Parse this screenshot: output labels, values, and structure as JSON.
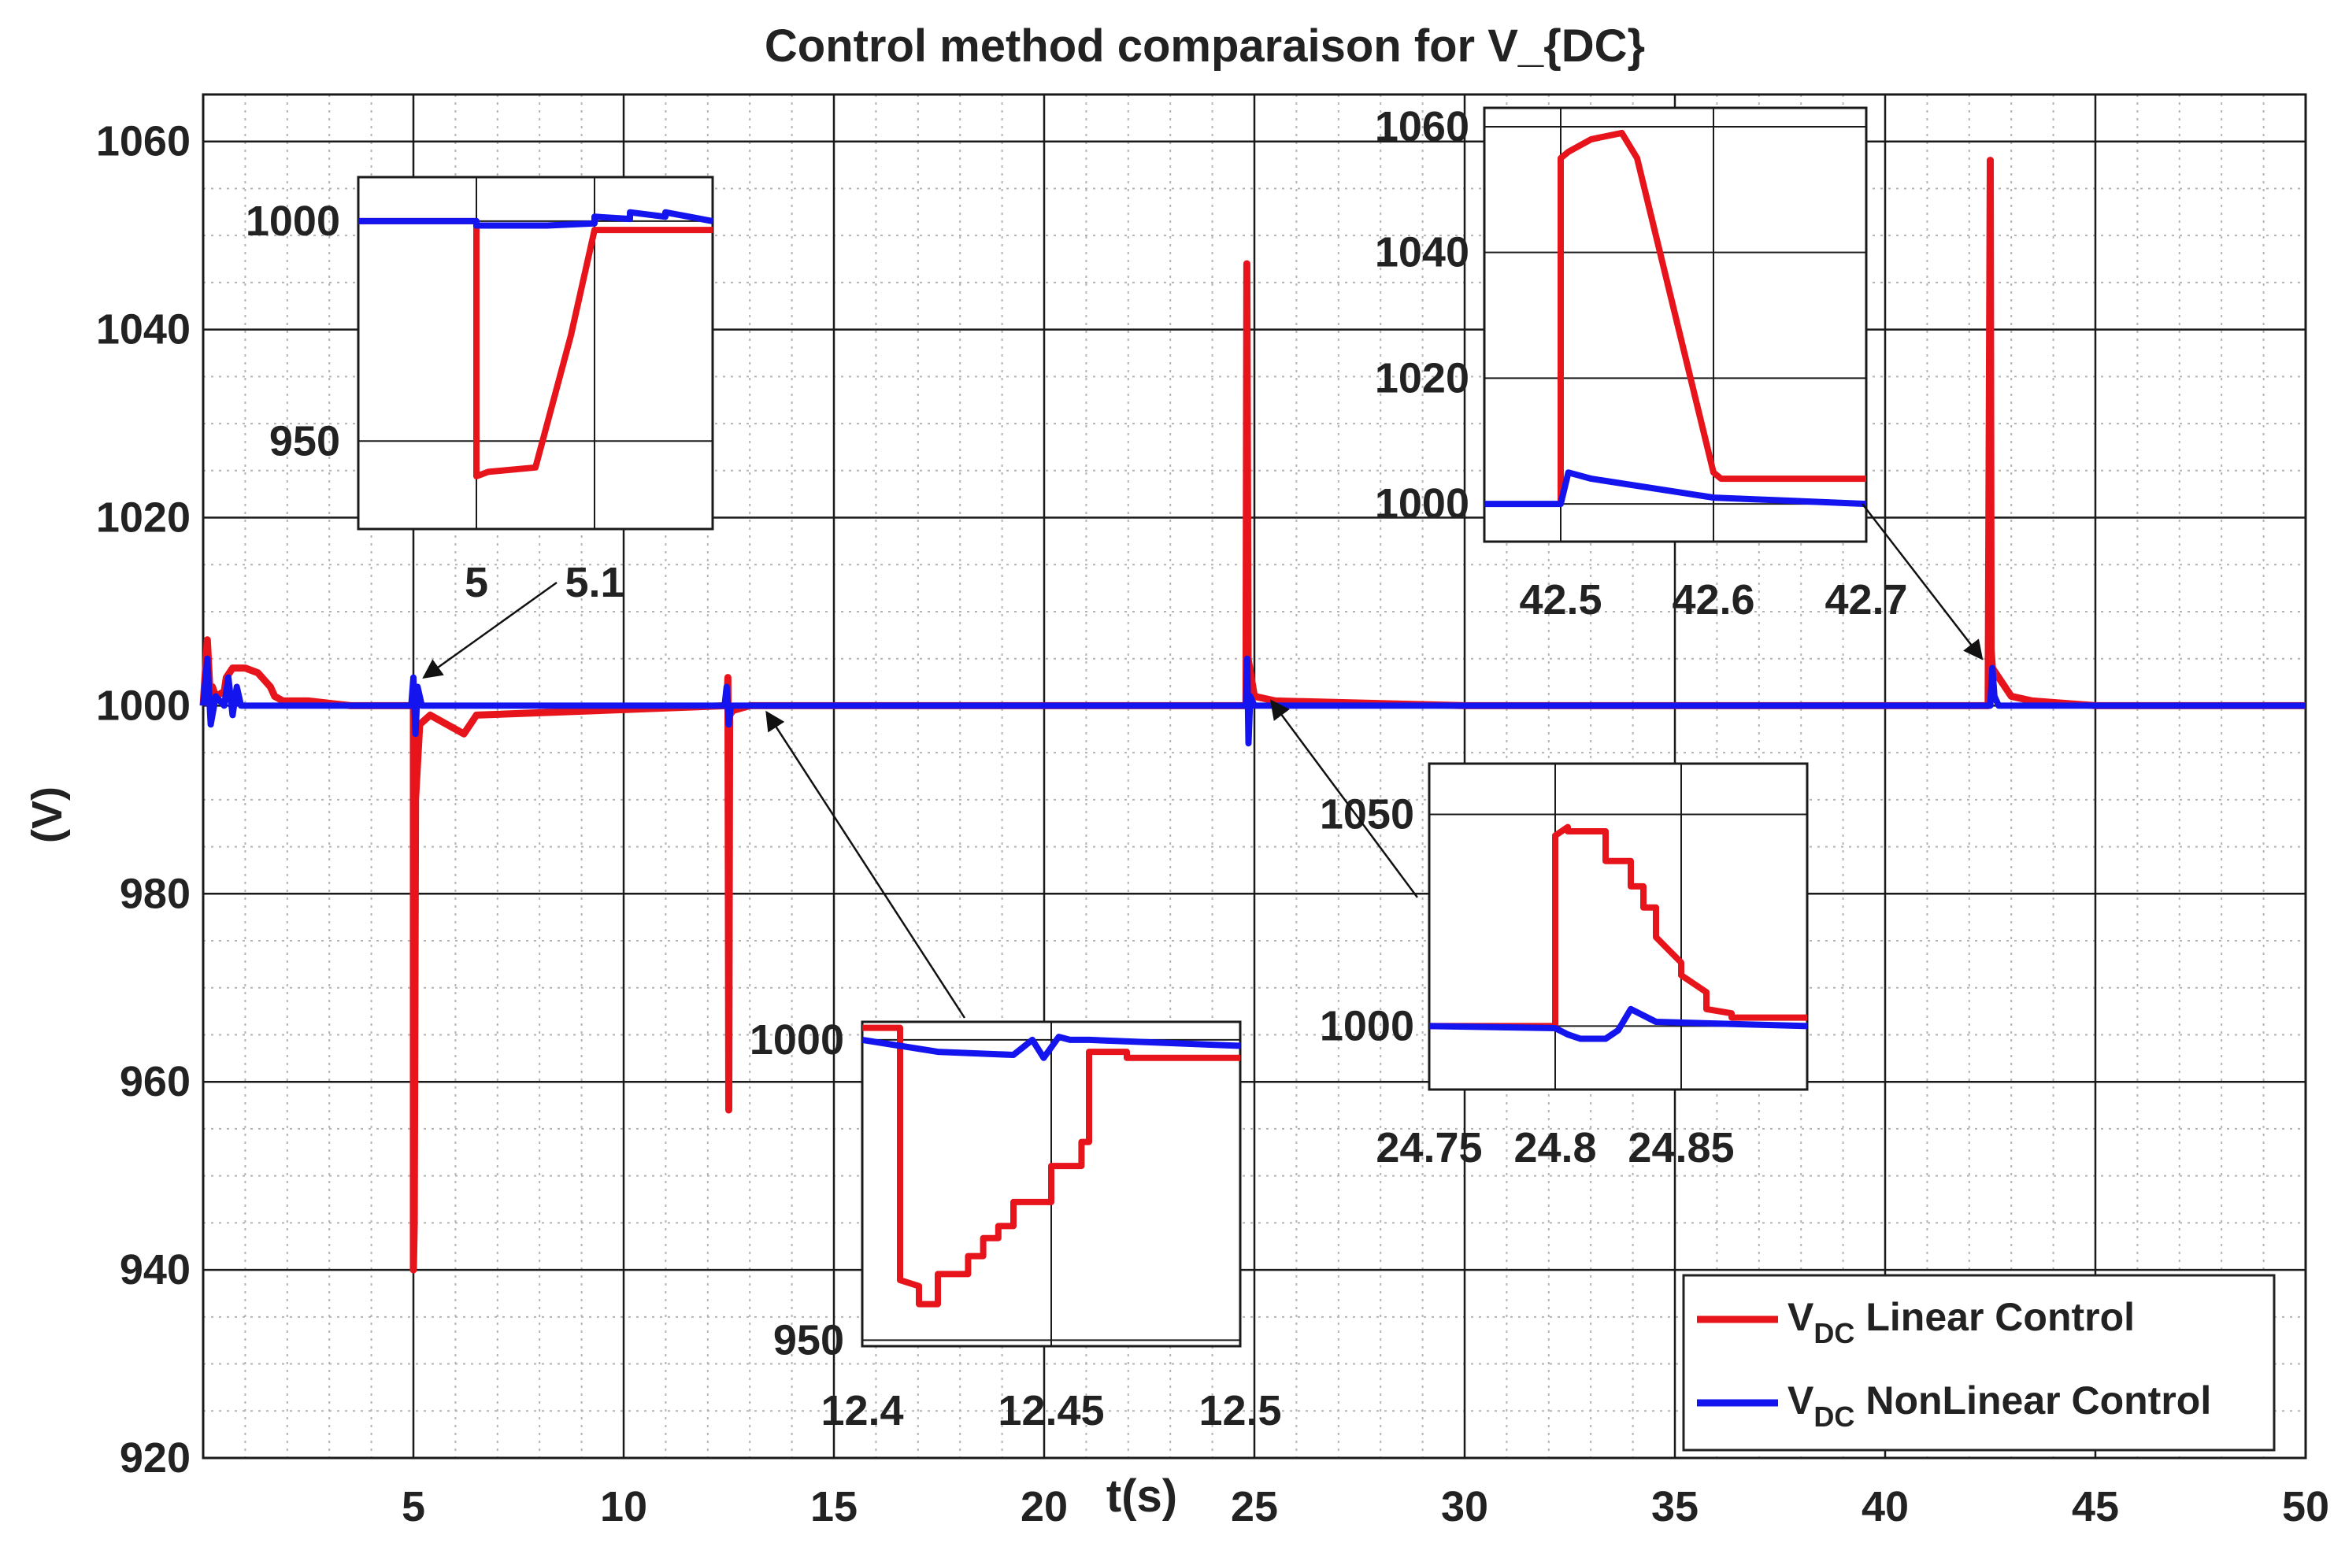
{
  "chart_data": [
    {
      "type": "line",
      "role": "main",
      "title": "Control method comparaison for V_{DC}",
      "xlabel": "t(s)",
      "ylabel": "(V)",
      "xlim": [
        0,
        50
      ],
      "ylim": [
        920,
        1065
      ],
      "xticks": [
        5,
        10,
        15,
        20,
        25,
        30,
        35,
        40,
        45,
        50
      ],
      "yticks": [
        920,
        940,
        960,
        980,
        1000,
        1020,
        1040,
        1060
      ],
      "grid": true,
      "legend_position": "bottom-right",
      "legend": [
        {
          "symbol": "V",
          "subscript": "DC",
          "label": "Linear Control",
          "color": "#e8141c"
        },
        {
          "symbol": "V",
          "subscript": "DC",
          "label": "NonLinear Control",
          "color": "#1414ee"
        }
      ],
      "series": [
        {
          "name": "V_DC Linear Control",
          "color": "#e8141c",
          "x": [
            0,
            0.1,
            0.18,
            0.22,
            0.3,
            0.5,
            0.55,
            0.7,
            1.0,
            1.3,
            1.6,
            1.7,
            1.9,
            2.5,
            3.5,
            5.0,
            5.0,
            5.02,
            5.05,
            5.15,
            5.4,
            5.8,
            6.2,
            6.5,
            12.45,
            12.48,
            12.5,
            12.52,
            12.6,
            13.0,
            24.7,
            24.8,
            24.82,
            24.85,
            25.0,
            25.5,
            30.0,
            42.45,
            42.5,
            42.52,
            42.55,
            42.7,
            43.0,
            43.5,
            45.0,
            50.0
          ],
          "y": [
            1000,
            1007,
            1000,
            1002,
            1001,
            1001.5,
            1003,
            1004,
            1004,
            1003.5,
            1002,
            1001,
            1000.5,
            1000.5,
            1000,
            1000,
            940,
            945,
            990,
            998,
            999,
            998,
            997,
            999,
            1000,
            1003,
            957,
            999,
            999.5,
            1000,
            1000,
            1000,
            1047,
            1005,
            1001,
            1000.5,
            1000,
            1000,
            1058,
            1006,
            1004,
            1003,
            1001,
            1000.5,
            1000,
            1000
          ]
        },
        {
          "name": "V_DC NonLinear Control",
          "color": "#1414ee",
          "x": [
            0,
            0.1,
            0.18,
            0.3,
            0.5,
            0.6,
            0.7,
            0.8,
            0.9,
            1.0,
            1.5,
            4.95,
            5.0,
            5.05,
            5.1,
            5.2,
            5.3,
            12.4,
            12.45,
            12.5,
            12.55,
            12.6,
            24.8,
            24.83,
            24.86,
            24.9,
            25.0,
            42.5,
            42.55,
            42.6,
            42.7,
            43.0,
            50.0
          ],
          "y": [
            1000,
            1005,
            998,
            1001,
            1000,
            1003,
            999,
            1002,
            1000,
            1000,
            1000,
            1000,
            1003,
            997,
            1002,
            1000,
            1000,
            1000,
            1002,
            998,
            1000,
            1000,
            1000,
            1005,
            996,
            1001,
            1000,
            1000,
            1004,
            1001,
            1000,
            1000,
            1000
          ]
        }
      ]
    },
    {
      "type": "line",
      "role": "inset-5s",
      "xlim": [
        4.9,
        5.2
      ],
      "ylim": [
        930,
        1010
      ],
      "xticks": [
        5,
        5.1
      ],
      "xtick_labels": [
        "5",
        "5.1"
      ],
      "yticks": [
        950,
        1000
      ],
      "ytick_labels": [
        "950",
        "1000"
      ],
      "series": [
        {
          "name": "Linear",
          "color": "#e8141c",
          "x": [
            4.9,
            5.0,
            5.0,
            5.01,
            5.05,
            5.08,
            5.1,
            5.2
          ],
          "y": [
            1000,
            1000,
            942,
            943,
            944,
            974,
            998,
            998
          ]
        },
        {
          "name": "NonLinear",
          "color": "#1414ee",
          "x": [
            4.9,
            5.0,
            5.0,
            5.06,
            5.1,
            5.1,
            5.13,
            5.13,
            5.16,
            5.16,
            5.2
          ],
          "y": [
            1000,
            1000,
            999,
            999,
            999.5,
            1001,
            1000.5,
            1002,
            1001,
            1002,
            1000
          ]
        }
      ]
    },
    {
      "type": "line",
      "role": "inset-12.5s",
      "xlim": [
        12.4,
        12.5
      ],
      "ylim": [
        949,
        1003
      ],
      "xticks": [
        12.4,
        12.45,
        12.5
      ],
      "xtick_labels": [
        "12.4",
        "12.45",
        "12.5"
      ],
      "yticks": [
        950,
        1000
      ],
      "ytick_labels": [
        "950",
        "1000"
      ],
      "series": [
        {
          "name": "Linear",
          "color": "#e8141c",
          "x": [
            12.4,
            12.41,
            12.41,
            12.415,
            12.415,
            12.42,
            12.42,
            12.428,
            12.428,
            12.432,
            12.432,
            12.436,
            12.436,
            12.44,
            12.44,
            12.45,
            12.45,
            12.458,
            12.458,
            12.46,
            12.46,
            12.47,
            12.47,
            12.5
          ],
          "y": [
            1002,
            1002,
            960,
            959,
            956,
            956,
            961,
            961,
            964,
            964,
            967,
            967,
            969,
            969,
            973,
            973,
            979,
            979,
            983,
            983,
            998,
            998,
            997,
            997
          ]
        },
        {
          "name": "NonLinear",
          "color": "#1414ee",
          "x": [
            12.4,
            12.41,
            12.42,
            12.44,
            12.445,
            12.448,
            12.452,
            12.455,
            12.46,
            12.5
          ],
          "y": [
            1000,
            999,
            998,
            997.5,
            1000,
            997,
            1000.5,
            1000,
            1000,
            999
          ]
        }
      ]
    },
    {
      "type": "line",
      "role": "inset-24.8s",
      "xlim": [
        24.75,
        24.9
      ],
      "ylim": [
        985,
        1062
      ],
      "xticks": [
        24.75,
        24.8,
        24.85
      ],
      "xtick_labels": [
        "24.75",
        "24.8",
        "24.85"
      ],
      "yticks": [
        1000,
        1050
      ],
      "ytick_labels": [
        "1000",
        "1050"
      ],
      "series": [
        {
          "name": "Linear",
          "color": "#e8141c",
          "x": [
            24.75,
            24.8,
            24.8,
            24.805,
            24.805,
            24.82,
            24.82,
            24.83,
            24.83,
            24.835,
            24.835,
            24.84,
            24.84,
            24.85,
            24.85,
            24.86,
            24.86,
            24.87,
            24.87,
            24.9
          ],
          "y": [
            1000,
            1000,
            1045,
            1047,
            1046,
            1046,
            1039,
            1039,
            1033,
            1033,
            1028,
            1028,
            1021,
            1015,
            1012,
            1008,
            1004,
            1003,
            1002,
            1002
          ]
        },
        {
          "name": "NonLinear",
          "color": "#1414ee",
          "x": [
            24.75,
            24.8,
            24.805,
            24.81,
            24.82,
            24.825,
            24.83,
            24.84,
            24.9
          ],
          "y": [
            1000,
            999.5,
            998,
            997,
            997,
            999,
            1004,
            1001,
            1000
          ]
        }
      ]
    },
    {
      "type": "line",
      "role": "inset-42.5s",
      "xlim": [
        42.45,
        42.7
      ],
      "ylim": [
        994,
        1063
      ],
      "xticks": [
        42.5,
        42.6,
        42.7
      ],
      "xtick_labels": [
        "42.5",
        "42.6",
        "42.7"
      ],
      "yticks": [
        1000,
        1020,
        1040,
        1060
      ],
      "ytick_labels": [
        "1000",
        "1020",
        "1040",
        "1060"
      ],
      "series": [
        {
          "name": "Linear",
          "color": "#e8141c",
          "x": [
            42.5,
            42.5,
            42.505,
            42.52,
            42.54,
            42.55,
            42.6,
            42.605,
            42.7
          ],
          "y": [
            1000,
            1055,
            1056,
            1058,
            1059,
            1055,
            1005,
            1004,
            1004
          ]
        },
        {
          "name": "NonLinear",
          "color": "#1414ee",
          "x": [
            42.45,
            42.5,
            42.505,
            42.52,
            42.6,
            42.7
          ],
          "y": [
            1000,
            1000,
            1005,
            1004,
            1001,
            1000
          ]
        }
      ]
    }
  ]
}
